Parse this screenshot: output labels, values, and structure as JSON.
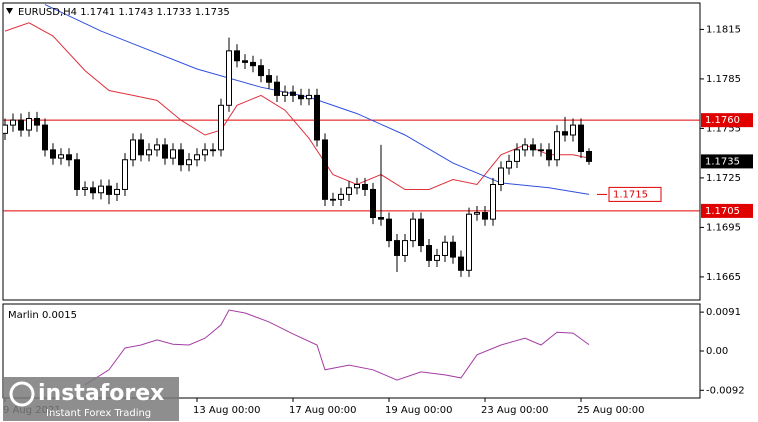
{
  "chart_data": [
    {
      "type": "candlestick",
      "title": "EURUSD,H4  1.1741 1.1743 1.1733 1.1735",
      "xlim": [
        -0.25,
        86.875
      ],
      "xticks": [
        {
          "value": 0,
          "label": "9 Aug 2021"
        },
        {
          "value": 24,
          "label": "13 Aug 00:00"
        },
        {
          "value": 36,
          "label": "17 Aug 00:00"
        },
        {
          "value": 48,
          "label": "19 Aug 00:00"
        },
        {
          "value": 60,
          "label": "23 Aug 00:00"
        },
        {
          "value": 72,
          "label": "25 Aug 00:00"
        }
      ],
      "ylim": [
        1.1651,
        1.1831
      ],
      "yticks": [
        1.1815,
        1.1785,
        1.1755,
        1.1725,
        1.1695,
        1.1665
      ],
      "bull_color": "#ffffff",
      "bear_color": "#000000",
      "ohlc": [
        [
          1.1752,
          1.1761,
          1.1748,
          1.1757
        ],
        [
          1.1757,
          1.1764,
          1.1753,
          1.176
        ],
        [
          1.176,
          1.1764,
          1.175,
          1.1754
        ],
        [
          1.1754,
          1.1765,
          1.175,
          1.1761
        ],
        [
          1.1761,
          1.1765,
          1.1753,
          1.1757
        ],
        [
          1.1757,
          1.1761,
          1.1738,
          1.1742
        ],
        [
          1.1742,
          1.1746,
          1.1733,
          1.1737
        ],
        [
          1.1737,
          1.1743,
          1.1733,
          1.1739
        ],
        [
          1.1739,
          1.1743,
          1.1732,
          1.1736
        ],
        [
          1.1736,
          1.174,
          1.1714,
          1.1718
        ],
        [
          1.1718,
          1.1723,
          1.1714,
          1.1719
        ],
        [
          1.1719,
          1.1723,
          1.1712,
          1.1716
        ],
        [
          1.1716,
          1.1724,
          1.1712,
          1.172
        ],
        [
          1.172,
          1.1724,
          1.1709,
          1.1715
        ],
        [
          1.1715,
          1.1722,
          1.1711,
          1.1718
        ],
        [
          1.1718,
          1.174,
          1.1714,
          1.1736
        ],
        [
          1.1736,
          1.1752,
          1.1732,
          1.1748
        ],
        [
          1.1748,
          1.1752,
          1.1735,
          1.1739
        ],
        [
          1.1739,
          1.1746,
          1.1735,
          1.1742
        ],
        [
          1.1742,
          1.1749,
          1.1738,
          1.1745
        ],
        [
          1.1745,
          1.1749,
          1.1733,
          1.1737
        ],
        [
          1.1737,
          1.1746,
          1.1733,
          1.1742
        ],
        [
          1.1742,
          1.1746,
          1.1729,
          1.1733
        ],
        [
          1.1733,
          1.174,
          1.1729,
          1.1736
        ],
        [
          1.1736,
          1.1743,
          1.1732,
          1.1739
        ],
        [
          1.1739,
          1.1746,
          1.1735,
          1.1742
        ],
        [
          1.1742,
          1.1746,
          1.1738,
          1.1742
        ],
        [
          1.1742,
          1.1773,
          1.1738,
          1.1769
        ],
        [
          1.1769,
          1.181,
          1.1765,
          1.1802
        ],
        [
          1.1802,
          1.1806,
          1.1792,
          1.1796
        ],
        [
          1.1796,
          1.18,
          1.1791,
          1.1795
        ],
        [
          1.1795,
          1.1799,
          1.1789,
          1.1793
        ],
        [
          1.1793,
          1.1797,
          1.1783,
          1.1787
        ],
        [
          1.1787,
          1.1791,
          1.1779,
          1.1783
        ],
        [
          1.1783,
          1.1787,
          1.1771,
          1.1775
        ],
        [
          1.1775,
          1.1781,
          1.1771,
          1.1777
        ],
        [
          1.1777,
          1.1781,
          1.1771,
          1.1775
        ],
        [
          1.1775,
          1.1779,
          1.1769,
          1.1773
        ],
        [
          1.1773,
          1.1779,
          1.1769,
          1.1775
        ],
        [
          1.1775,
          1.1779,
          1.1744,
          1.1748
        ],
        [
          1.1748,
          1.1752,
          1.1708,
          1.1712
        ],
        [
          1.1712,
          1.1716,
          1.1708,
          1.1712
        ],
        [
          1.1712,
          1.1719,
          1.1708,
          1.1715
        ],
        [
          1.1715,
          1.1723,
          1.1711,
          1.1719
        ],
        [
          1.1719,
          1.1725,
          1.1715,
          1.1721
        ],
        [
          1.1721,
          1.1725,
          1.1714,
          1.1718
        ],
        [
          1.1718,
          1.1722,
          1.1697,
          1.1701
        ],
        [
          1.1701,
          1.1745,
          1.1696,
          1.17
        ],
        [
          1.17,
          1.1704,
          1.1683,
          1.1687
        ],
        [
          1.1687,
          1.1691,
          1.1668,
          1.1678
        ],
        [
          1.1678,
          1.1691,
          1.1674,
          1.1687
        ],
        [
          1.1687,
          1.1704,
          1.1683,
          1.17
        ],
        [
          1.17,
          1.1704,
          1.168,
          1.1684
        ],
        [
          1.1684,
          1.1688,
          1.1671,
          1.1675
        ],
        [
          1.1675,
          1.1682,
          1.1671,
          1.1678
        ],
        [
          1.1678,
          1.169,
          1.1674,
          1.1686
        ],
        [
          1.1686,
          1.169,
          1.1673,
          1.1677
        ],
        [
          1.1677,
          1.1681,
          1.1665,
          1.1669
        ],
        [
          1.1669,
          1.1707,
          1.1665,
          1.1703
        ],
        [
          1.1703,
          1.1708,
          1.1699,
          1.1704
        ],
        [
          1.1704,
          1.1708,
          1.1696,
          1.17
        ],
        [
          1.17,
          1.1725,
          1.1696,
          1.1721
        ],
        [
          1.1721,
          1.1735,
          1.1717,
          1.1731
        ],
        [
          1.1731,
          1.1739,
          1.1727,
          1.1735
        ],
        [
          1.1735,
          1.1746,
          1.1731,
          1.1742
        ],
        [
          1.1742,
          1.1749,
          1.1738,
          1.1745
        ],
        [
          1.1745,
          1.1749,
          1.1738,
          1.1742
        ],
        [
          1.1742,
          1.1746,
          1.1738,
          1.1742
        ],
        [
          1.1742,
          1.1746,
          1.1732,
          1.1736
        ],
        [
          1.1736,
          1.1757,
          1.1732,
          1.1753
        ],
        [
          1.1753,
          1.1762,
          1.1747,
          1.1751
        ],
        [
          1.1751,
          1.1761,
          1.1747,
          1.1757
        ],
        [
          1.1757,
          1.1761,
          1.1737,
          1.1741
        ],
        [
          1.1741,
          1.1743,
          1.1733,
          1.1735
        ]
      ],
      "series": [
        {
          "color": "#e0303c",
          "x": [
            0,
            3,
            6,
            10,
            13,
            16,
            19,
            22,
            25,
            27,
            29,
            32,
            35,
            38,
            41,
            44,
            47,
            50,
            53,
            56,
            59,
            62,
            65,
            68,
            71,
            73
          ],
          "values": [
            1.1814,
            1.1819,
            1.1811,
            1.179,
            1.1778,
            1.1775,
            1.1772,
            1.176,
            1.1751,
            1.1754,
            1.1769,
            1.1775,
            1.1766,
            1.1749,
            1.1727,
            1.1721,
            1.1727,
            1.1718,
            1.1718,
            1.1724,
            1.1721,
            1.1739,
            1.1745,
            1.1739,
            1.1739,
            1.1737
          ]
        },
        {
          "color": "#2f4fe0",
          "x": [
            5,
            12,
            24,
            32,
            38,
            44,
            50,
            56,
            62,
            68,
            73
          ],
          "values": [
            1.183,
            1.1814,
            1.1791,
            1.178,
            1.1774,
            1.1764,
            1.1751,
            1.1734,
            1.1722,
            1.1719,
            1.1715
          ]
        }
      ],
      "hlines": [
        {
          "value": 1.176,
          "label": "1.1760",
          "color": "#e00000"
        },
        {
          "value": 1.1705,
          "color": "#e00000"
        }
      ],
      "last_price": 1.1735,
      "annotation": {
        "value": 1.1715,
        "color": "#e00000"
      }
    },
    {
      "type": "line",
      "title": "Marlin 0.0015",
      "color": "#a43ca4",
      "xlim": [
        -0.25,
        86.875
      ],
      "ylim": [
        -0.011,
        0.011
      ],
      "yticks": [
        0.0091,
        {
          "value": 0,
          "label": "0.00"
        },
        -0.0092
      ],
      "x": [
        10,
        13,
        15,
        17,
        19,
        21,
        23,
        25,
        27,
        28,
        30,
        33,
        36,
        39,
        40,
        43,
        46,
        49,
        52,
        55,
        57,
        59,
        62,
        65,
        67,
        69,
        71,
        73
      ],
      "values": [
        -0.0079,
        -0.0044,
        0.0007,
        0.0014,
        0.0026,
        0.0016,
        0.0014,
        0.003,
        0.0061,
        0.0096,
        0.0089,
        0.0068,
        0.004,
        0.0014,
        -0.0044,
        -0.0033,
        -0.0044,
        -0.0068,
        -0.0049,
        -0.0056,
        -0.0063,
        -0.0009,
        0.0014,
        0.003,
        0.0014,
        0.0044,
        0.0042,
        0.0015
      ]
    }
  ],
  "watermark": {
    "name": "instaforex",
    "tagline": "Instant Forex Trading"
  }
}
